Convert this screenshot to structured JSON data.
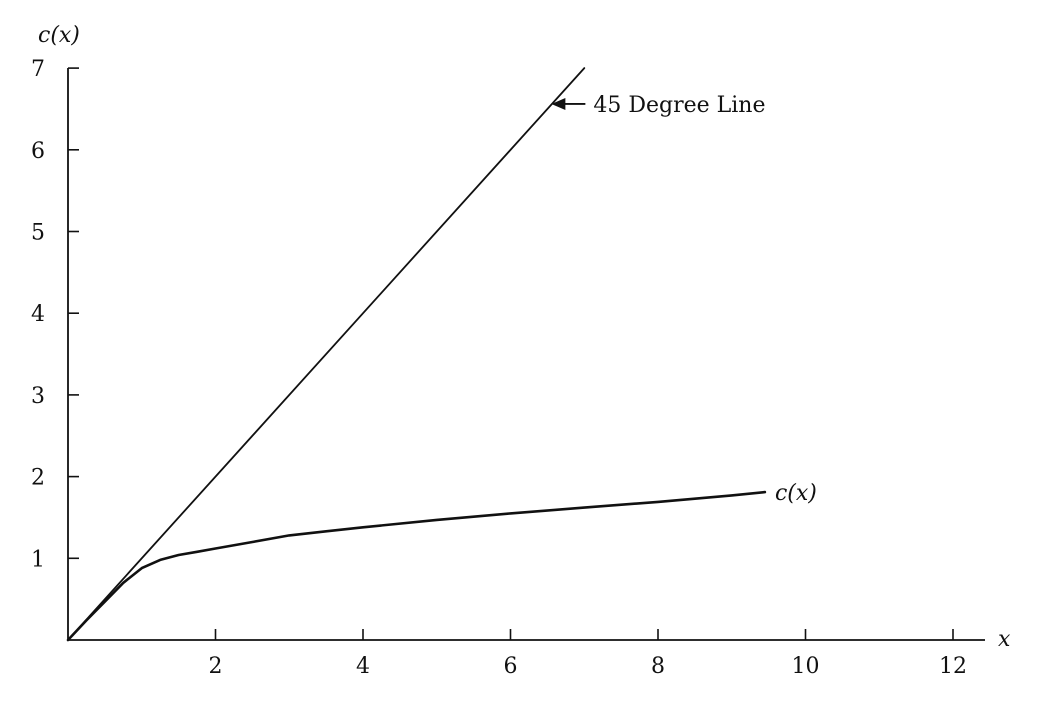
{
  "chart_data": {
    "type": "line",
    "title": "",
    "xlabel": "x",
    "ylabel": "c(x)",
    "xlim": [
      0,
      12.5
    ],
    "ylim": [
      0,
      7
    ],
    "x_ticks": [
      2,
      4,
      6,
      8,
      10,
      12
    ],
    "y_ticks": [
      1,
      2,
      3,
      4,
      5,
      6,
      7
    ],
    "grid": false,
    "series": [
      {
        "x": [
          0,
          7
        ],
        "y": [
          0,
          7
        ],
        "color": "#111111"
      },
      {
        "name": "c(x)",
        "x": [
          0,
          0.25,
          0.5,
          0.75,
          1.0,
          1.25,
          1.5,
          1.75,
          2.0,
          2.5,
          3.0,
          3.5,
          4.0,
          5.0,
          6.0,
          7.0,
          8.0,
          9.0,
          9.45
        ],
        "y": [
          0,
          0.24,
          0.47,
          0.7,
          0.88,
          0.98,
          1.04,
          1.08,
          1.12,
          1.2,
          1.28,
          1.33,
          1.38,
          1.47,
          1.55,
          1.62,
          1.69,
          1.77,
          1.81
        ],
        "color": "#111111"
      }
    ],
    "annotations": [
      {
        "text": "45 Degree Line",
        "arrow_to": [
          6.5,
          6.5
        ]
      }
    ]
  }
}
